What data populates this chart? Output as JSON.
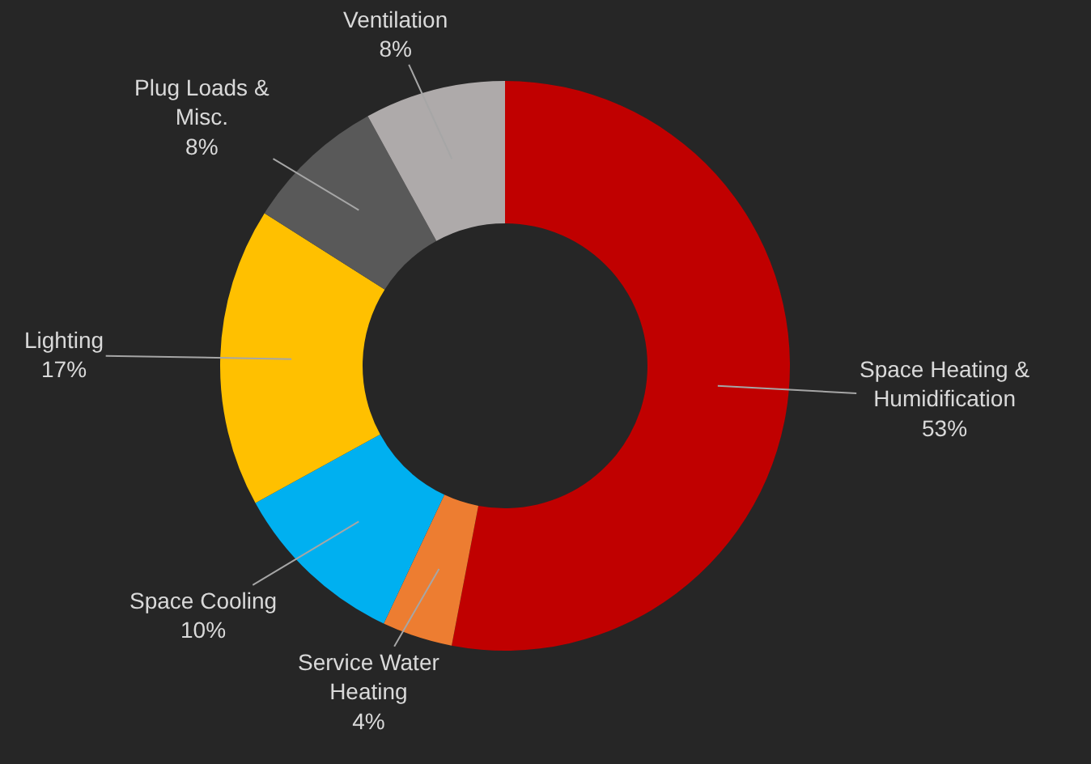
{
  "chart_data": {
    "type": "donut",
    "categories": [
      "Space Heating & Humidification",
      "Service Water Heating",
      "Space Cooling",
      "Lighting",
      "Plug Loads & Misc.",
      "Ventilation"
    ],
    "values": [
      53,
      4,
      10,
      17,
      8,
      8
    ],
    "colors": [
      "#c00000",
      "#ed7d31",
      "#00b0f0",
      "#ffc000",
      "#595959",
      "#aeaaaa"
    ],
    "value_labels": [
      "53%",
      "4%",
      "10%",
      "17%",
      "8%",
      "8%"
    ]
  }
}
